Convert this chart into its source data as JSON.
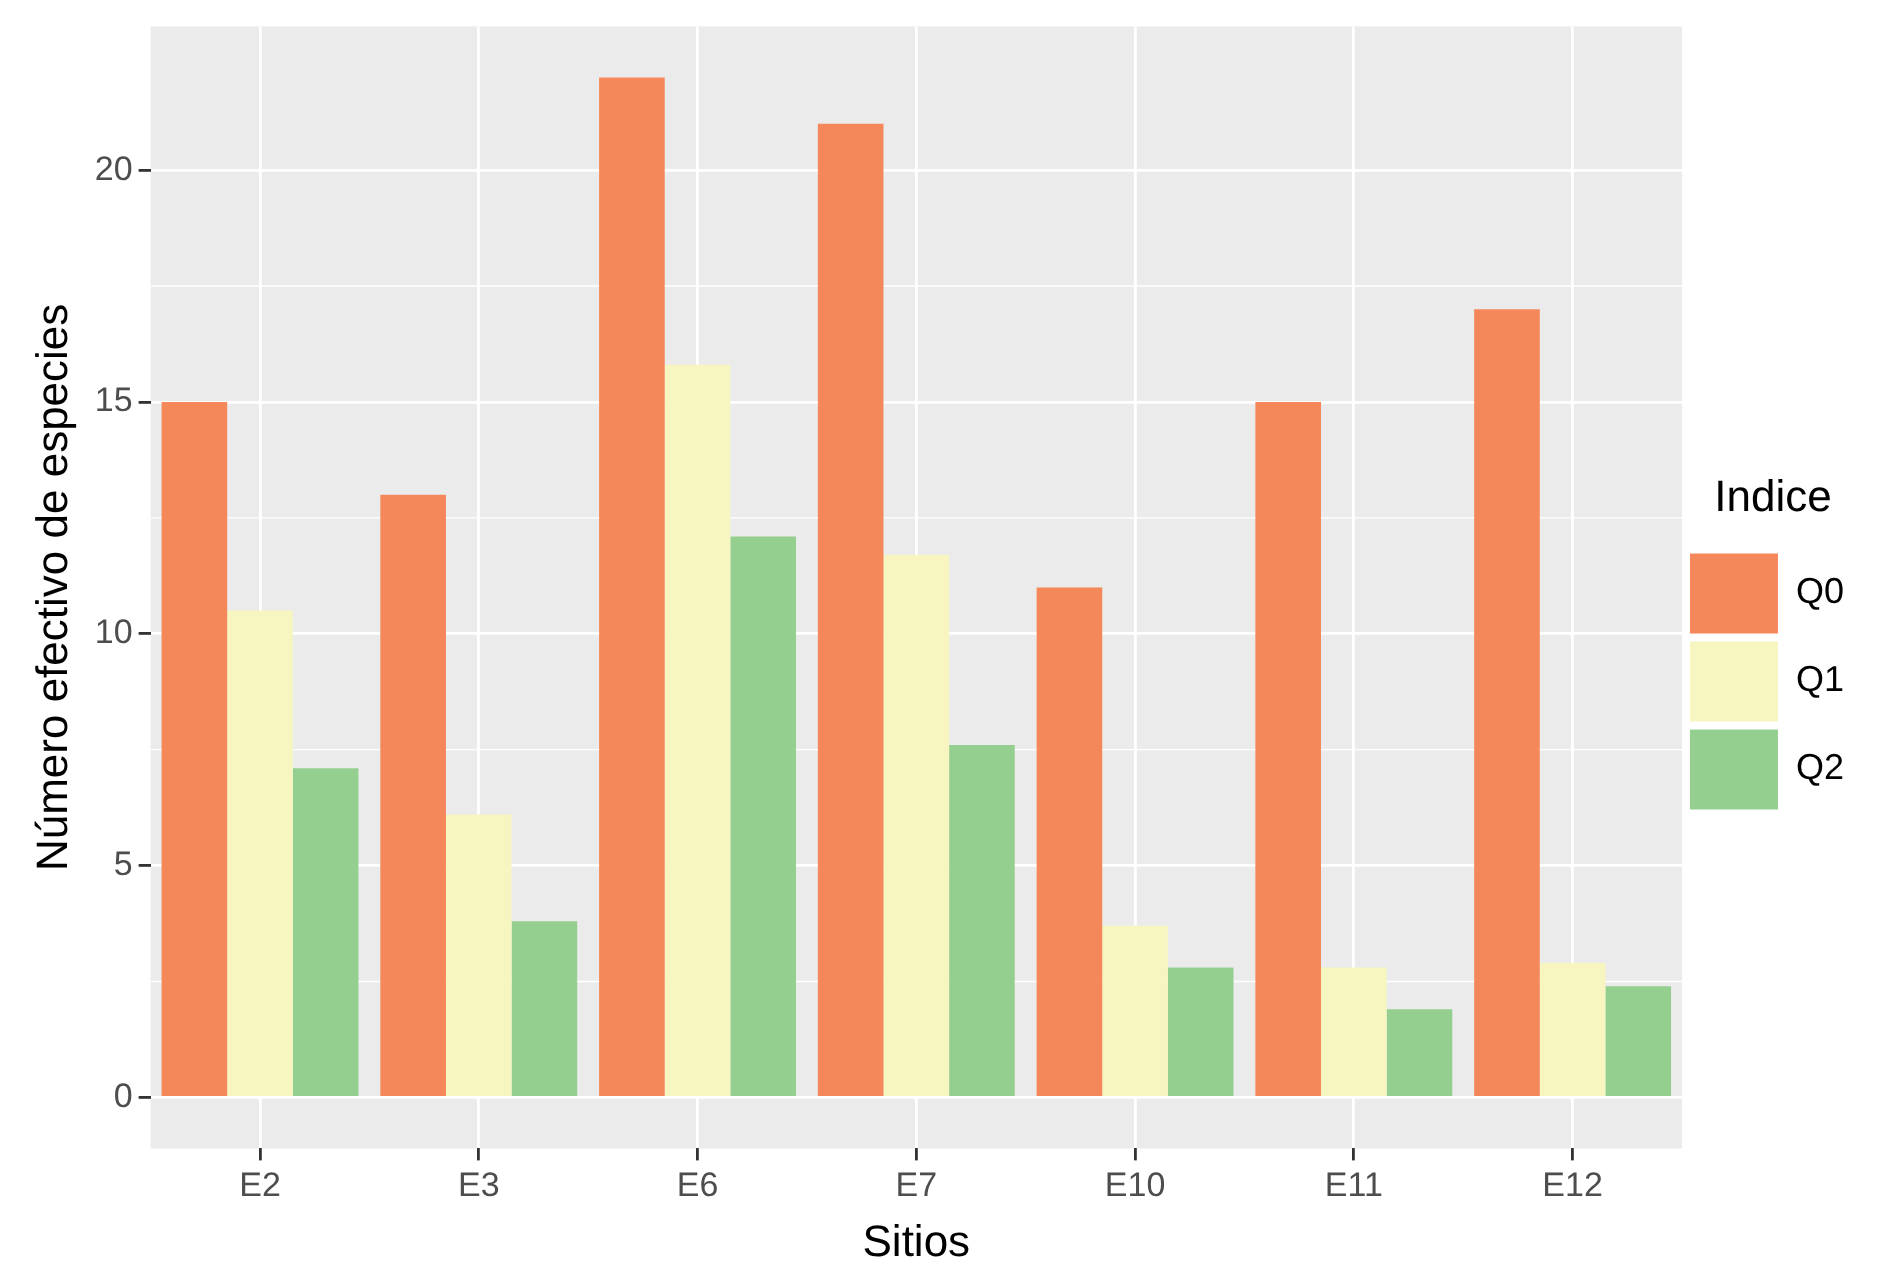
{
  "chart_data": {
    "type": "bar",
    "xlabel": "Sitios",
    "ylabel": "Número efectivo de especies",
    "legend_title": "Indice",
    "categories": [
      "E2",
      "E3",
      "E6",
      "E7",
      "E10",
      "E11",
      "E12"
    ],
    "series": [
      {
        "name": "Q0",
        "color": "#f4885a",
        "values": [
          15,
          13,
          22,
          21,
          11,
          15,
          17
        ]
      },
      {
        "name": "Q1",
        "color": "#f7f5c0",
        "values": [
          10.5,
          6.1,
          15.8,
          11.7,
          3.7,
          2.8,
          2.9
        ]
      },
      {
        "name": "Q2",
        "color": "#95cf8f",
        "values": [
          7.1,
          3.8,
          12.1,
          7.6,
          2.8,
          1.9,
          2.4
        ]
      }
    ],
    "ylim": [
      -1.1,
      23.1
    ],
    "yticks": [
      0,
      5,
      10,
      15,
      20
    ],
    "grid": true,
    "legend": "right"
  }
}
